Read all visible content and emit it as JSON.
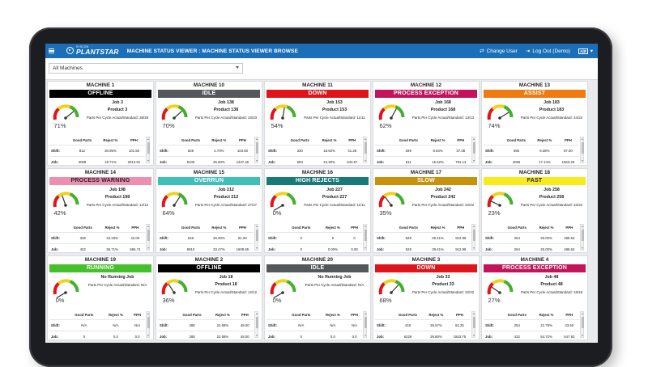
{
  "header": {
    "logo_small": "SYSCON",
    "logo_big": "PLANTSTAR",
    "breadcrumb": "MACHINE STATUS VIEWER : MACHINE STATUS VIEWER BROWSE",
    "change_user": "Change User",
    "logout": "Log Out (Demo)",
    "kb": "A|B"
  },
  "filter": {
    "selected": "All Machines"
  },
  "stat_headers": {
    "good": "Good Parts",
    "reject": "Reject %",
    "pph": "PPH",
    "shift": "Shift:",
    "job": "Job:"
  },
  "cycle_label": "Parts Per Cycle Actual/Standard:",
  "colors": {
    "offline": "#000000",
    "idle": "#55575b",
    "down": "#e0151b",
    "process_exception": "#c4125b",
    "assist": "#f07a12",
    "process_warning": "#ef8fb0",
    "overrun": "#3ec0b8",
    "high_rejects": "#177a78",
    "slow": "#c9920b",
    "fast": "#f7ec1a",
    "running": "#43c02b"
  },
  "machines": [
    {
      "name": "MACHINE 1",
      "status": "OFFLINE",
      "color": "#000000",
      "text": "#ffffff",
      "pct": "71%",
      "pct_value": 71,
      "job": "Job 3",
      "product": "Product 3",
      "cycle": "28/28",
      "shift": [
        "812",
        "30.95%",
        "101.50"
      ],
      "jobrow": [
        "3068",
        "19.71%",
        "2013.91"
      ]
    },
    {
      "name": "MACHINE 10",
      "status": "IDLE",
      "color": "#55575b",
      "text": "#ffffff",
      "pct": "70%",
      "pct_value": 70,
      "job": "Job 138",
      "product": "Product 138",
      "cycle": "23/23",
      "shift": [
        "828",
        "2.70%",
        "103.50"
      ],
      "jobrow": [
        "5106",
        "25.60%",
        "1437.26"
      ]
    },
    {
      "name": "MACHINE 11",
      "status": "DOWN",
      "color": "#e0151b",
      "text": "#ffffff",
      "pct": "54%",
      "pct_value": 54,
      "job": "Job 153",
      "product": "Product 153",
      "cycle": "11/11",
      "shift": [
        "330",
        "18.92%",
        "41.25"
      ],
      "jobrow": [
        "693",
        "24.30%",
        "643.67"
      ]
    },
    {
      "name": "MACHINE 12",
      "status": "PROCESS EXCEPTION",
      "color": "#c4125b",
      "text": "#ffffff",
      "pct": "62%",
      "pct_value": 62,
      "job": "Job 168",
      "product": "Product 168",
      "cycle": "13/13",
      "shift": [
        "299",
        "8.03%",
        "37.38"
      ],
      "jobrow": [
        "611",
        "15.62%",
        "791.13"
      ]
    },
    {
      "name": "MACHINE 13",
      "status": "ASSIST",
      "color": "#f07a12",
      "text": "#ffffff",
      "pct": "74%",
      "pct_value": 74,
      "job": "Job 183",
      "product": "Product 183",
      "cycle": "24/24",
      "shift": [
        "696",
        "9.38%",
        "87.00"
      ],
      "jobrow": [
        "4056",
        "17.14%",
        "1653.29"
      ]
    },
    {
      "name": "MACHINE 14",
      "status": "PROCESS WARNING",
      "color": "#ef8fb0",
      "text": "#222222",
      "pct": "42%",
      "pct_value": 42,
      "job": "Job 198",
      "product": "Product 198",
      "cycle": "12/12",
      "shift": [
        "336",
        "33.33%",
        "42.00"
      ],
      "jobrow": [
        "432",
        "35.71%",
        "565.74"
      ]
    },
    {
      "name": "MACHINE 15",
      "status": "OVERRUN",
      "color": "#3ec0b8",
      "text": "#ffffff",
      "pct": "64%",
      "pct_value": 64,
      "job": "Job 212",
      "product": "Product 212",
      "cycle": "27/27",
      "shift": [
        "648",
        "25.00%",
        "81.00"
      ],
      "jobrow": [
        "8910",
        "33.47%",
        "1609.55"
      ]
    },
    {
      "name": "MACHINE 16",
      "status": "HIGH REJECTS",
      "color": "#177a78",
      "text": "#ffffff",
      "pct": "0%",
      "pct_value": 0,
      "job": "Job 227",
      "product": "Product 227",
      "cycle": "11/11",
      "shift": [
        "0",
        "0",
        "0"
      ],
      "jobrow": [
        "0",
        "0.00%",
        "0.00"
      ]
    },
    {
      "name": "MACHINE 17",
      "status": "SLOW",
      "color": "#c9920b",
      "text": "#ffffff",
      "pct": "35%",
      "pct_value": 35,
      "job": "Job 242",
      "product": "Product 242",
      "cycle": "22/22",
      "shift": [
        "528",
        "29.41%",
        "912.98"
      ],
      "jobrow": [
        "528",
        "29.41%",
        "912.98"
      ]
    },
    {
      "name": "MACHINE 18",
      "status": "FAST",
      "color": "#f7ec1a",
      "text": "#222222",
      "pct": "23%",
      "pct_value": 23,
      "job": "Job 258",
      "product": "Product 258",
      "cycle": "22/22",
      "shift": [
        "264",
        "25.00%",
        "488.63"
      ],
      "jobrow": [
        "264",
        "25.00%",
        "488.63"
      ]
    },
    {
      "name": "MACHINE 19",
      "status": "RUNNING",
      "color": "#43c02b",
      "text": "#ffffff",
      "pct": "0%",
      "pct_value": 0,
      "job": "No Running Job",
      "product": "",
      "cycle": "N/A",
      "shift": [
        "N/A",
        "N/A",
        "N/A"
      ],
      "jobrow": [
        "0",
        "0.0",
        "0.0"
      ]
    },
    {
      "name": "MACHINE 2",
      "status": "OFFLINE",
      "color": "#000000",
      "text": "#ffffff",
      "pct": "36%",
      "pct_value": 36,
      "job": "Job 18",
      "product": "Product 18",
      "cycle": "12/12",
      "shift": [
        "288",
        "22.58%",
        "48.00"
      ],
      "jobrow": [
        "288",
        "22.58%",
        "48.00"
      ]
    },
    {
      "name": "MACHINE 20",
      "status": "IDLE",
      "color": "#55575b",
      "text": "#ffffff",
      "pct": "0%",
      "pct_value": 0,
      "job": "No Running Job",
      "product": "",
      "cycle": "N/A",
      "shift": [
        "N/A",
        "N/A",
        "N/A"
      ],
      "jobrow": [
        "0",
        "0.0",
        "0.0"
      ]
    },
    {
      "name": "MACHINE 3",
      "status": "DOWN",
      "color": "#e0151b",
      "text": "#ffffff",
      "pct": "68%",
      "pct_value": 68,
      "job": "Job 33",
      "product": "Product 33",
      "cycle": "22/22",
      "shift": [
        "418",
        "36.57%",
        "62.25"
      ],
      "jobrow": [
        "6226",
        "29.80%",
        "1553.75"
      ]
    },
    {
      "name": "MACHINE 4",
      "status": "PROCESS EXCEPTION",
      "color": "#c4125b",
      "text": "#ffffff",
      "pct": "27%",
      "pct_value": 27,
      "job": "Job 48",
      "product": "Product 48",
      "cycle": "18/18",
      "shift": [
        "254",
        "22.75%",
        "43.50"
      ],
      "jobrow": [
        "432",
        "54.72%",
        "547.93"
      ]
    }
  ]
}
